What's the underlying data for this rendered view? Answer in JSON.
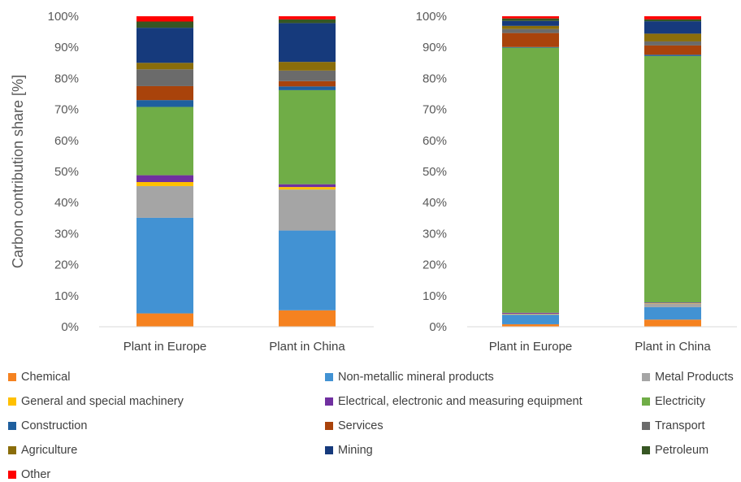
{
  "chart_data": [
    {
      "type": "bar",
      "stacked": true,
      "title": "",
      "xlabel": "",
      "ylabel": "Carbon contribution share [%]",
      "ylim": [
        0,
        100
      ],
      "yticks": [
        "0%",
        "10%",
        "20%",
        "30%",
        "40%",
        "50%",
        "60%",
        "70%",
        "80%",
        "90%",
        "100%"
      ],
      "categories": [
        "Plant in Europe",
        "Plant in China"
      ],
      "grid": false,
      "legend_position": "bottom",
      "series": [
        {
          "name": "Chemical",
          "color": "#F58220",
          "values": [
            4.3,
            5.3
          ]
        },
        {
          "name": "Non-metallic mineral products",
          "color": "#4292D3",
          "values": [
            30.8,
            25.7
          ]
        },
        {
          "name": "Metal Products",
          "color": "#A5A5A5",
          "values": [
            10.2,
            13.2
          ]
        },
        {
          "name": "General and special machinery",
          "color": "#FFC000",
          "values": [
            1.3,
            0.8
          ]
        },
        {
          "name": "Electrical, electronic and measuring equipment",
          "color": "#7030A0",
          "values": [
            2.2,
            0.9
          ]
        },
        {
          "name": "Electricity",
          "color": "#70AD47",
          "values": [
            22.0,
            30.3
          ]
        },
        {
          "name": "Construction",
          "color": "#1F5F9E",
          "values": [
            2.2,
            1.2
          ]
        },
        {
          "name": "Services",
          "color": "#A9430B",
          "values": [
            4.5,
            1.7
          ]
        },
        {
          "name": "Transport",
          "color": "#6B6B6B",
          "values": [
            5.4,
            3.4
          ]
        },
        {
          "name": "Agriculture",
          "color": "#8A6D0A",
          "values": [
            2.1,
            2.8
          ]
        },
        {
          "name": "Mining",
          "color": "#163A7C",
          "values": [
            11.3,
            12.5
          ]
        },
        {
          "name": "Petroleum",
          "color": "#375623",
          "values": [
            2.0,
            1.2
          ]
        },
        {
          "name": "Other",
          "color": "#FF0000",
          "values": [
            1.7,
            1.0
          ]
        }
      ]
    },
    {
      "type": "bar",
      "stacked": true,
      "title": "",
      "xlabel": "",
      "ylabel": "",
      "ylim": [
        0,
        100
      ],
      "yticks": [
        "0%",
        "10%",
        "20%",
        "30%",
        "40%",
        "50%",
        "60%",
        "70%",
        "80%",
        "90%",
        "100%"
      ],
      "categories": [
        "Plant in Europe",
        "Plant in China"
      ],
      "grid": false,
      "legend_position": "bottom",
      "series": [
        {
          "name": "Chemical",
          "color": "#F58220",
          "values": [
            0.8,
            2.3
          ]
        },
        {
          "name": "Non-metallic mineral products",
          "color": "#4292D3",
          "values": [
            3.0,
            4.0
          ]
        },
        {
          "name": "Metal Products",
          "color": "#A5A5A5",
          "values": [
            0.3,
            1.2
          ]
        },
        {
          "name": "General and special machinery",
          "color": "#FFC000",
          "values": [
            0.1,
            0.1
          ]
        },
        {
          "name": "Electrical, electronic and measuring equipment",
          "color": "#7030A0",
          "values": [
            0.3,
            0.2
          ]
        },
        {
          "name": "Electricity",
          "color": "#70AD47",
          "values": [
            85.4,
            79.4
          ]
        },
        {
          "name": "Construction",
          "color": "#1F5F9E",
          "values": [
            0.2,
            0.4
          ]
        },
        {
          "name": "Services",
          "color": "#A9430B",
          "values": [
            4.5,
            3.0
          ]
        },
        {
          "name": "Transport",
          "color": "#6B6B6B",
          "values": [
            1.3,
            1.3
          ]
        },
        {
          "name": "Agriculture",
          "color": "#8A6D0A",
          "values": [
            1.0,
            2.5
          ]
        },
        {
          "name": "Mining",
          "color": "#163A7C",
          "values": [
            1.6,
            4.0
          ]
        },
        {
          "name": "Petroleum",
          "color": "#375623",
          "values": [
            0.8,
            0.6
          ]
        },
        {
          "name": "Other",
          "color": "#FF0000",
          "values": [
            0.7,
            1.0
          ]
        }
      ]
    }
  ],
  "legend": {
    "items": [
      {
        "label": "Chemical",
        "color": "#F58220"
      },
      {
        "label": "Non-metallic mineral products",
        "color": "#4292D3"
      },
      {
        "label": "Metal Products",
        "color": "#A5A5A5"
      },
      {
        "label": "General and special machinery",
        "color": "#FFC000"
      },
      {
        "label": "Electrical, electronic and measuring equipment",
        "color": "#7030A0"
      },
      {
        "label": "Electricity",
        "color": "#70AD47"
      },
      {
        "label": "Construction",
        "color": "#1F5F9E"
      },
      {
        "label": "Services",
        "color": "#A9430B"
      },
      {
        "label": "Transport",
        "color": "#6B6B6B"
      },
      {
        "label": "Agriculture",
        "color": "#8A6D0A"
      },
      {
        "label": "Mining",
        "color": "#163A7C"
      },
      {
        "label": "Petroleum",
        "color": "#375623"
      },
      {
        "label": "Other",
        "color": "#FF0000"
      }
    ]
  }
}
